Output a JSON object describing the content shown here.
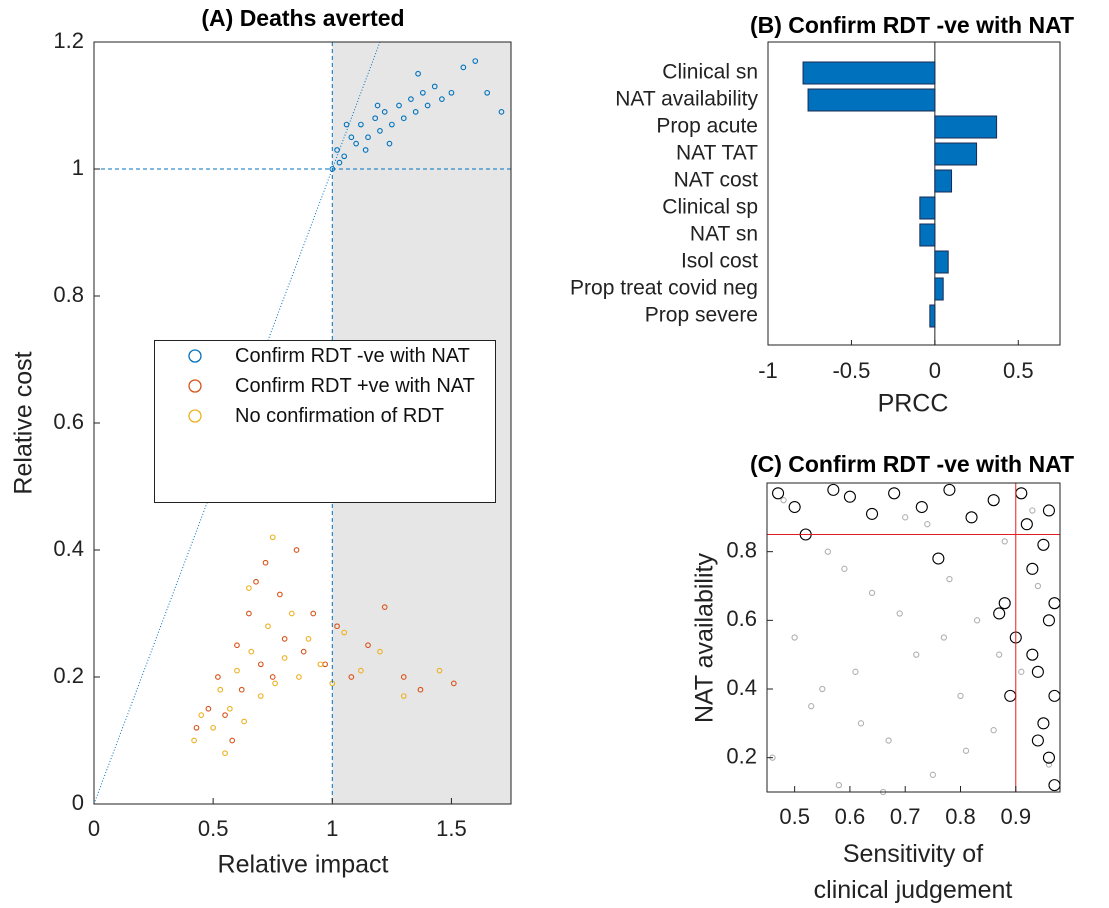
{
  "chart_data": [
    {
      "type": "scatter",
      "title": "(A) Deaths averted",
      "xlabel": "Relative impact",
      "ylabel": "Relative cost",
      "xlim": [
        0,
        1.75
      ],
      "ylim": [
        0,
        1.2
      ],
      "xticks": [
        0,
        0.5,
        1,
        1.5
      ],
      "yticks": [
        0,
        0.2,
        0.4,
        0.6,
        0.8,
        1,
        1.2
      ],
      "reference_lines": {
        "x": 1,
        "y": 1
      },
      "series": [
        {
          "name": "Confirm RDT -ve with NAT",
          "color": "#0072bd",
          "x": [
            1.0,
            1.02,
            1.05,
            1.08,
            1.1,
            1.12,
            1.15,
            1.18,
            1.2,
            1.22,
            1.25,
            1.28,
            1.3,
            1.33,
            1.35,
            1.38,
            1.4,
            1.43,
            1.46,
            1.5,
            1.55,
            1.6,
            1.65,
            1.71,
            1.06,
            1.14,
            1.24,
            1.36,
            1.03,
            1.19
          ],
          "values": [
            1.0,
            1.03,
            1.02,
            1.05,
            1.04,
            1.07,
            1.05,
            1.08,
            1.06,
            1.09,
            1.07,
            1.1,
            1.08,
            1.11,
            1.09,
            1.12,
            1.1,
            1.13,
            1.11,
            1.12,
            1.16,
            1.17,
            1.12,
            1.09,
            1.07,
            1.03,
            1.04,
            1.15,
            1.01,
            1.1
          ]
        },
        {
          "name": "Confirm RDT +ve with NAT",
          "color": "#d95319",
          "x": [
            0.43,
            0.48,
            0.52,
            0.55,
            0.6,
            0.62,
            0.65,
            0.7,
            0.72,
            0.75,
            0.78,
            0.8,
            0.85,
            0.88,
            0.92,
            0.97,
            1.02,
            1.08,
            1.15,
            1.22,
            1.3,
            1.37,
            1.51,
            0.68,
            0.58
          ],
          "values": [
            0.12,
            0.15,
            0.2,
            0.14,
            0.25,
            0.18,
            0.3,
            0.22,
            0.38,
            0.2,
            0.33,
            0.26,
            0.4,
            0.24,
            0.3,
            0.22,
            0.28,
            0.2,
            0.25,
            0.31,
            0.2,
            0.18,
            0.19,
            0.35,
            0.1
          ]
        },
        {
          "name": "No confirmation of RDT",
          "color": "#edb120",
          "x": [
            0.42,
            0.45,
            0.5,
            0.53,
            0.57,
            0.6,
            0.63,
            0.66,
            0.7,
            0.73,
            0.76,
            0.8,
            0.83,
            0.86,
            0.9,
            0.95,
            1.0,
            1.05,
            1.12,
            1.2,
            1.3,
            1.45,
            0.55,
            0.65,
            0.75
          ],
          "values": [
            0.1,
            0.14,
            0.12,
            0.18,
            0.15,
            0.21,
            0.13,
            0.24,
            0.17,
            0.28,
            0.19,
            0.23,
            0.3,
            0.2,
            0.26,
            0.22,
            0.19,
            0.27,
            0.21,
            0.24,
            0.17,
            0.21,
            0.08,
            0.34,
            0.42
          ]
        }
      ]
    },
    {
      "type": "barh",
      "title": "(B) Confirm RDT -ve with NAT",
      "xlabel": "PRCC",
      "color": "#0072bd",
      "xlim": [
        -1,
        0.75
      ],
      "xticks": [
        -1,
        -0.5,
        0,
        0.5
      ],
      "categories": [
        "Clinical sn",
        "NAT availability",
        "Prop acute",
        "NAT TAT",
        "NAT cost",
        "Clinical sp",
        "NAT sn",
        "Isol cost",
        "Prop treat covid neg",
        "Prop severe"
      ],
      "values": [
        -0.79,
        -0.76,
        0.37,
        0.25,
        0.1,
        -0.09,
        -0.09,
        0.08,
        0.05,
        -0.03
      ]
    },
    {
      "type": "scatter",
      "title": "(C) Confirm RDT -ve with NAT",
      "xlabel": "Sensitivity of clinical judgement",
      "ylabel": "NAT availability",
      "xlim": [
        0.45,
        0.98
      ],
      "ylim": [
        0.1,
        1.0
      ],
      "xticks": [
        0.5,
        0.6,
        0.7,
        0.8,
        0.9
      ],
      "yticks": [
        0.2,
        0.4,
        0.6,
        0.8
      ],
      "reference_lines": {
        "x": 0.9,
        "y": 0.85
      },
      "reference_color": "#e02020",
      "series": [
        {
          "color": "#b0b0b0",
          "x": [
            0.46,
            0.5,
            0.53,
            0.56,
            0.58,
            0.61,
            0.64,
            0.67,
            0.7,
            0.72,
            0.75,
            0.78,
            0.8,
            0.83,
            0.86,
            0.88,
            0.91,
            0.94,
            0.96,
            0.48,
            0.55,
            0.62,
            0.69,
            0.74,
            0.81,
            0.87,
            0.93,
            0.59,
            0.66,
            0.77
          ],
          "values": [
            0.2,
            0.55,
            0.35,
            0.8,
            0.12,
            0.45,
            0.68,
            0.25,
            0.9,
            0.5,
            0.15,
            0.72,
            0.38,
            0.6,
            0.28,
            0.83,
            0.45,
            0.7,
            0.18,
            0.95,
            0.4,
            0.3,
            0.62,
            0.88,
            0.22,
            0.5,
            0.92,
            0.75,
            0.1,
            0.55
          ]
        },
        {
          "color": "#000000",
          "x": [
            0.47,
            0.5,
            0.52,
            0.57,
            0.6,
            0.64,
            0.68,
            0.73,
            0.78,
            0.82,
            0.86,
            0.88,
            0.9,
            0.91,
            0.92,
            0.93,
            0.94,
            0.95,
            0.96,
            0.97,
            0.97,
            0.96,
            0.95,
            0.94,
            0.93,
            0.97,
            0.96,
            0.89,
            0.87,
            0.76
          ],
          "values": [
            0.97,
            0.93,
            0.85,
            0.98,
            0.96,
            0.91,
            0.97,
            0.93,
            0.98,
            0.9,
            0.95,
            0.65,
            0.55,
            0.97,
            0.88,
            0.75,
            0.45,
            0.3,
            0.2,
            0.12,
            0.38,
            0.6,
            0.82,
            0.25,
            0.5,
            0.65,
            0.92,
            0.38,
            0.62,
            0.78
          ]
        }
      ]
    }
  ]
}
